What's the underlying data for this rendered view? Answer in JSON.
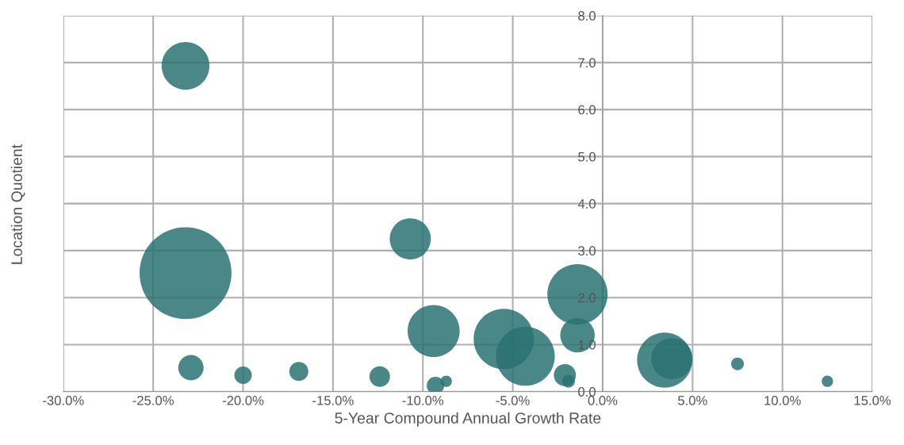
{
  "chart_data": {
    "type": "bubble",
    "xlabel": "5-Year Compound Annual Growth Rate",
    "ylabel": "Location Quotient",
    "x": [
      -23.2,
      -23.2,
      -22.9,
      -20.0,
      -16.9,
      -12.4,
      -10.7,
      -9.4,
      -9.3,
      -8.7,
      -5.5,
      -4.3,
      -2.1,
      -1.9,
      -1.4,
      -1.4,
      3.45,
      3.85,
      7.5,
      12.5
    ],
    "values": [
      6.93,
      2.52,
      0.51,
      0.35,
      0.43,
      0.32,
      3.25,
      1.29,
      0.13,
      0.22,
      1.12,
      0.75,
      0.35,
      0.22,
      2.07,
      1.2,
      0.67,
      0.7,
      0.59,
      0.22
    ],
    "sizes": [
      0.27,
      1,
      0.076,
      0.036,
      0.043,
      0.05,
      0.2,
      0.32,
      0.036,
      0.015,
      0.43,
      0.41,
      0.058,
      0.019,
      0.43,
      0.14,
      0.36,
      0.2,
      0.019,
      0.015
    ],
    "color": "#2a7272",
    "xlim": [
      -30,
      15
    ],
    "xticks": [
      {
        "value": -30,
        "label": "-30.0%"
      },
      {
        "value": -25,
        "label": "-25.0%"
      },
      {
        "value": -20,
        "label": "-20.0%"
      },
      {
        "value": -15,
        "label": "-15.0%"
      },
      {
        "value": -10,
        "label": "-10.0%"
      },
      {
        "value": -5,
        "label": "-5.0%"
      },
      {
        "value": 0,
        "label": "0.0%"
      },
      {
        "value": 5,
        "label": "5.0%"
      },
      {
        "value": 10,
        "label": "10.0%"
      },
      {
        "value": 15,
        "label": "15.0%"
      }
    ],
    "ylim": [
      0,
      8
    ],
    "yticks": [
      {
        "value": 0,
        "label": "0.0"
      },
      {
        "value": 1,
        "label": "1.0"
      },
      {
        "value": 2,
        "label": "2.0"
      },
      {
        "value": 3,
        "label": "3.0"
      },
      {
        "value": 4,
        "label": "4.0"
      },
      {
        "value": 5,
        "label": "5.0"
      },
      {
        "value": 6,
        "label": "6.0"
      },
      {
        "value": 7,
        "label": "7.0"
      },
      {
        "value": 8,
        "label": "8.0"
      }
    ],
    "grid": true,
    "marker": "circle"
  }
}
